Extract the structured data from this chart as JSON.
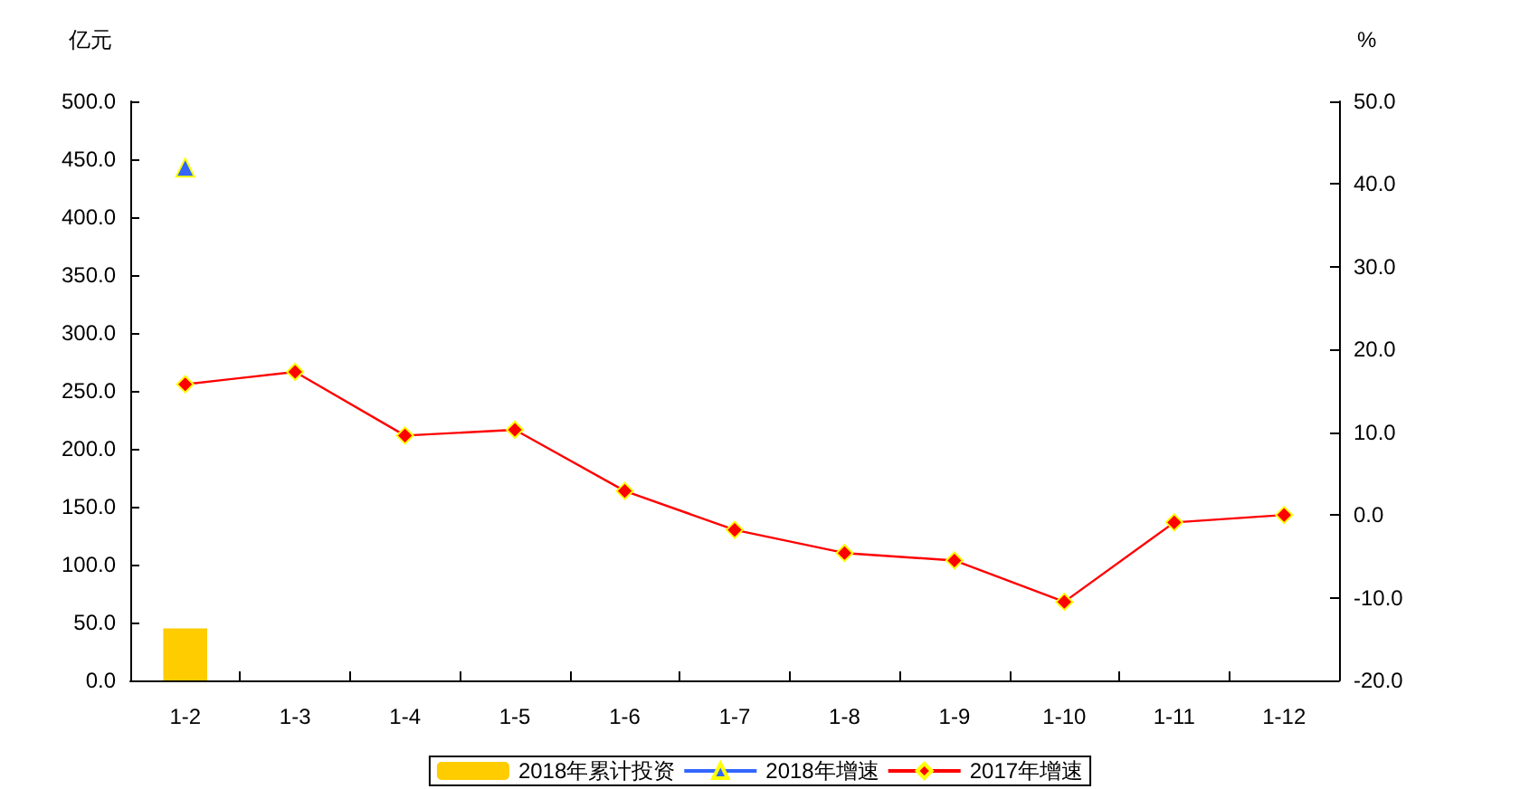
{
  "chart_data": {
    "type": "bar",
    "ylabel": "亿元",
    "y2label": "%",
    "categories": [
      "1-2",
      "1-3",
      "1-4",
      "1-5",
      "1-6",
      "1-7",
      "1-8",
      "1-9",
      "1-10",
      "1-11",
      "1-12"
    ],
    "series": [
      {
        "name": "2018年累计投资",
        "color": "#ffcc00",
        "values": [
          45,
          null,
          null,
          null,
          null,
          null,
          null,
          null,
          null,
          null,
          null
        ]
      },
      {
        "name": "2018年增速",
        "type": "line",
        "axis": "y2",
        "marker": "triangle",
        "color": "#3366ff",
        "values": [
          42.0,
          null,
          null,
          null,
          null,
          null,
          null,
          null,
          null,
          null,
          null
        ]
      },
      {
        "name": "2017年增速",
        "type": "line",
        "axis": "y2",
        "marker": "diamond",
        "color": "#ff0000",
        "values": [
          15.8,
          17.3,
          9.6,
          10.3,
          2.9,
          -1.8,
          -4.6,
          -5.5,
          -10.5,
          -0.9,
          0.0
        ]
      }
    ],
    "ylim": [
      0,
      500
    ],
    "yticks": [
      {
        "value": 0,
        "label": "0.0"
      },
      {
        "value": 50,
        "label": "50.0"
      },
      {
        "value": 100,
        "label": "100.0"
      },
      {
        "value": 150,
        "label": "150.0"
      },
      {
        "value": 200,
        "label": "200.0"
      },
      {
        "value": 250,
        "label": "250.0"
      },
      {
        "value": 300,
        "label": "300.0"
      },
      {
        "value": 350,
        "label": "350.0"
      },
      {
        "value": 400,
        "label": "400.0"
      },
      {
        "value": 450,
        "label": "450.0"
      },
      {
        "value": 500,
        "label": "500.0"
      }
    ],
    "y2lim": [
      -20,
      50
    ],
    "y2ticks": [
      {
        "value": -20,
        "label": "-20.0"
      },
      {
        "value": -10,
        "label": "-10.0"
      },
      {
        "value": 0,
        "label": "0.0"
      },
      {
        "value": 10,
        "label": "10.0"
      },
      {
        "value": 20,
        "label": "20.0"
      },
      {
        "value": 30,
        "label": "30.0"
      },
      {
        "value": 40,
        "label": "40.0"
      },
      {
        "value": 50,
        "label": "50.0"
      }
    ],
    "grid": false,
    "legend": "bottom"
  }
}
